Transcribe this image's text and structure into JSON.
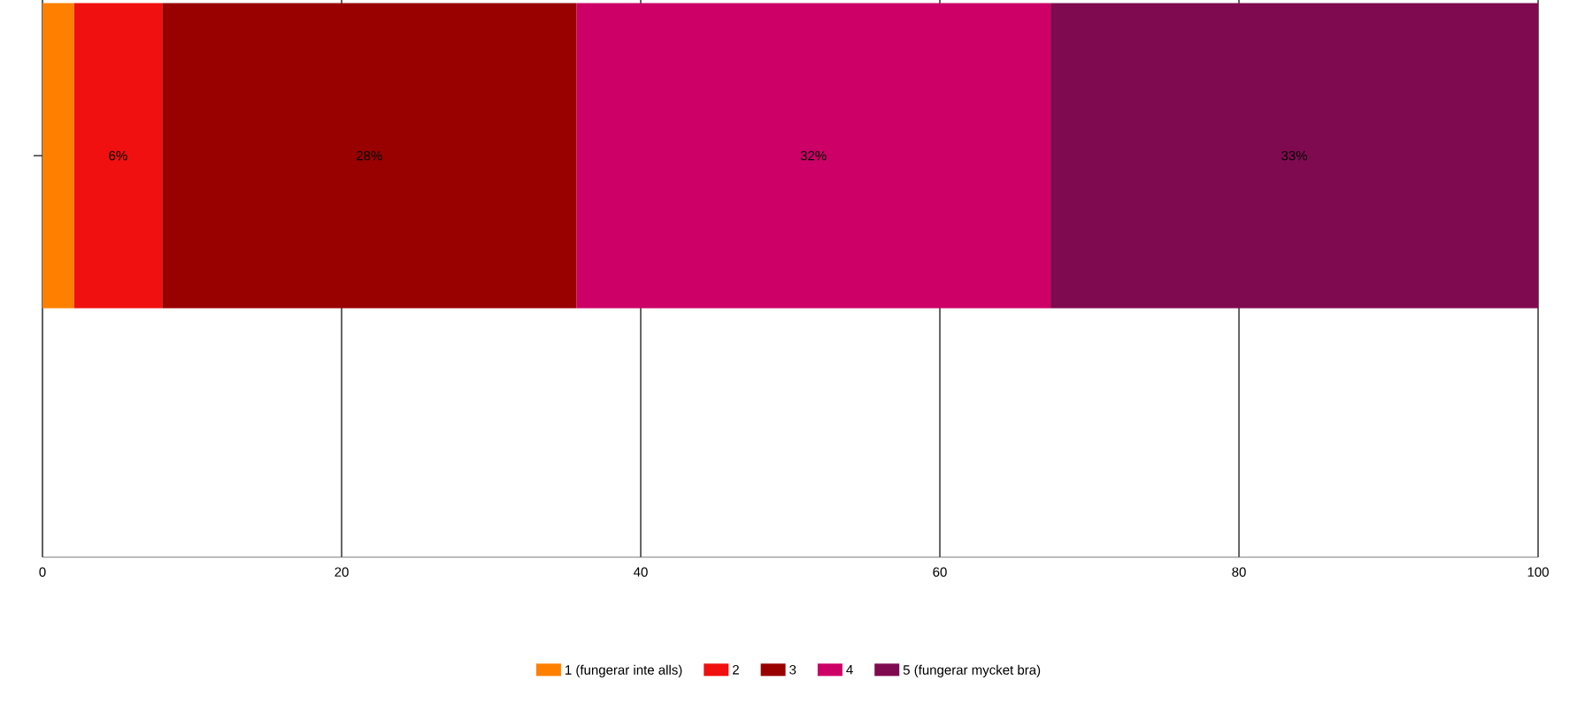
{
  "chart_data": {
    "type": "bar",
    "orientation": "horizontal",
    "stacked": true,
    "categories": [
      null
    ],
    "series": [
      {
        "name": "1 (fungerar inte alls)",
        "color": "#ff8000",
        "values": [
          2.1
        ]
      },
      {
        "name": "2",
        "color": "#f01010",
        "values": [
          5.9
        ],
        "value_labels": [
          "6%"
        ]
      },
      {
        "name": "3",
        "color": "#990000",
        "values": [
          27.7
        ],
        "value_labels": [
          "28%"
        ]
      },
      {
        "name": "4",
        "color": "#cc0066",
        "values": [
          31.7
        ],
        "value_labels": [
          "32%"
        ]
      },
      {
        "name": "5 (fungerar mycket bra)",
        "color": "#800a50",
        "values": [
          32.6
        ],
        "value_labels": [
          "33%"
        ]
      }
    ],
    "xlim": [
      0,
      100
    ],
    "xticks": [
      0,
      20,
      40,
      60,
      80,
      100
    ],
    "grid": "x",
    "legend": "bottom"
  }
}
